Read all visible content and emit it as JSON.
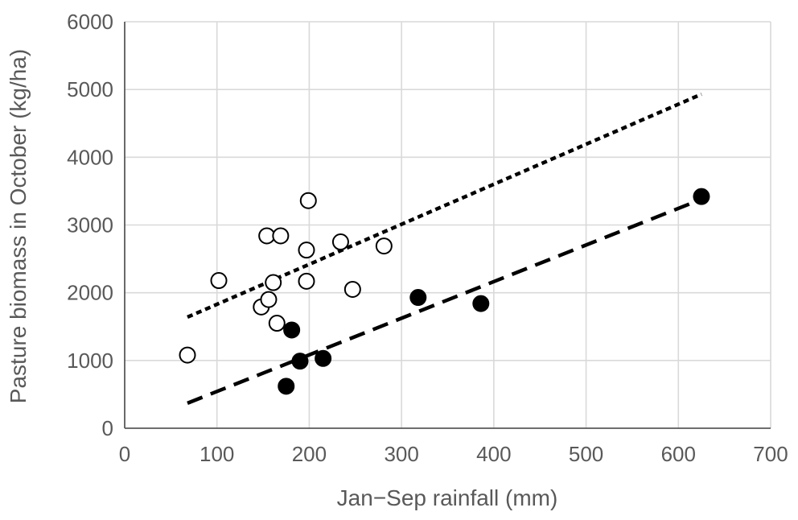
{
  "chart_data": {
    "type": "scatter",
    "title": "",
    "xlabel": "Jan−Sep rainfall (mm)",
    "ylabel": "Pasture biomass in October (kg/ha)",
    "xlim": [
      0,
      700
    ],
    "ylim": [
      0,
      6000
    ],
    "x_ticks": [
      "0",
      "100",
      "200",
      "300",
      "400",
      "500",
      "600",
      "700"
    ],
    "y_ticks": [
      "0",
      "1000",
      "2000",
      "3000",
      "4000",
      "5000",
      "6000"
    ],
    "grid": true,
    "legend": "none",
    "series": [
      {
        "marker": "open-circle",
        "points": [
          {
            "x": 68,
            "y": 1080
          },
          {
            "x": 102,
            "y": 2180
          },
          {
            "x": 148,
            "y": 1790
          },
          {
            "x": 154,
            "y": 2840
          },
          {
            "x": 156,
            "y": 1900
          },
          {
            "x": 161,
            "y": 2150
          },
          {
            "x": 165,
            "y": 1550
          },
          {
            "x": 169,
            "y": 2840
          },
          {
            "x": 197,
            "y": 2630
          },
          {
            "x": 197,
            "y": 2170
          },
          {
            "x": 199,
            "y": 3360
          },
          {
            "x": 234,
            "y": 2750
          },
          {
            "x": 247,
            "y": 2050
          },
          {
            "x": 281,
            "y": 2690
          }
        ],
        "trend": {
          "style": "dotted",
          "x": [
            68,
            625
          ],
          "y": [
            1640,
            4930
          ]
        }
      },
      {
        "marker": "filled-circle",
        "points": [
          {
            "x": 175,
            "y": 620
          },
          {
            "x": 181,
            "y": 1450
          },
          {
            "x": 190,
            "y": 990
          },
          {
            "x": 215,
            "y": 1030
          },
          {
            "x": 318,
            "y": 1930
          },
          {
            "x": 386,
            "y": 1840
          },
          {
            "x": 625,
            "y": 3420
          }
        ],
        "trend": {
          "style": "dashed",
          "x": [
            68,
            625
          ],
          "y": [
            370,
            3380
          ]
        }
      }
    ]
  },
  "colors": {
    "grid": "#d9d9d9",
    "axis": "#595959",
    "marker": "#000000",
    "background": "#ffffff"
  }
}
